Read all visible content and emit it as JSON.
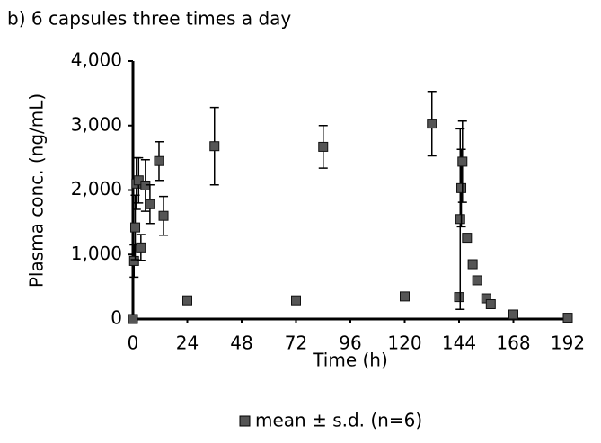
{
  "chart_data": {
    "type": "scatter",
    "title": "b) 6 capsules three times a day",
    "xlabel": "Time (h)",
    "ylabel": "Plasma conc. (ng/mL)",
    "series": [
      {
        "name": "mean ± s.d. (n=6)",
        "color": "#555555",
        "x": [
          0,
          0.5,
          1,
          1.5,
          2.5,
          3.5,
          5.5,
          7.5,
          11.5,
          13.5,
          24,
          36,
          72,
          84,
          120,
          132,
          144,
          144.5,
          145,
          145.5,
          147.5,
          150,
          152,
          156,
          158,
          168,
          192
        ],
        "values": [
          0,
          900,
          1420,
          2100,
          2150,
          1110,
          2070,
          1780,
          2450,
          1600,
          290,
          2680,
          290,
          2670,
          350,
          3030,
          340,
          1550,
          2030,
          2440,
          1260,
          850,
          600,
          320,
          230,
          70,
          20
        ],
        "errors": [
          null,
          250,
          500,
          400,
          350,
          200,
          400,
          300,
          300,
          300,
          null,
          600,
          null,
          330,
          null,
          500,
          null,
          1400,
          600,
          630,
          null,
          null,
          null,
          null,
          null,
          null,
          null
        ]
      }
    ],
    "xlim": [
      0,
      192
    ],
    "xticks": [
      0,
      24,
      48,
      72,
      96,
      120,
      144,
      168,
      192
    ],
    "ylim": [
      0,
      4000
    ],
    "yticks": [
      0,
      {
        "value": 1000,
        "label": "1,000"
      },
      {
        "value": 2000,
        "label": "2,000"
      },
      {
        "value": 3000,
        "label": "3,000"
      },
      {
        "value": 4000,
        "label": "4,000"
      }
    ]
  }
}
